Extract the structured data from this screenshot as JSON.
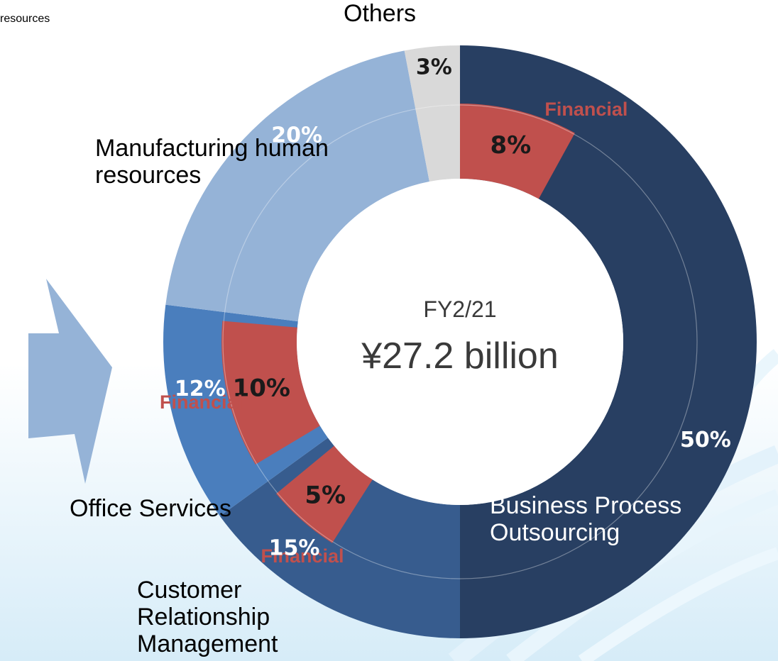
{
  "corner_note": "resources",
  "colors": {
    "bpo": "#283f62",
    "crm": "#375c8e",
    "office": "#4a7ebd",
    "manufacturing": "#95b3d7",
    "others": "#d9d9d9",
    "financial": "#c0504d",
    "arrow": "#95b3d7",
    "financial_text": "#c0504d"
  },
  "center": {
    "period": "FY2/21",
    "total": "¥27.2 billion"
  },
  "chart_data": {
    "type": "pie",
    "subtype": "donut",
    "title": "",
    "center_label": "FY2/21",
    "total": "¥27.2 billion",
    "unit": "%",
    "series": [
      {
        "name": "Business Process Outsourcing",
        "label_lines": [
          "Business Process",
          "Outsourcing"
        ],
        "value": 50,
        "value_label": "50%",
        "financial": 8,
        "financial_label": "8%"
      },
      {
        "name": "Customer Relationship Management",
        "label_lines": [
          "Customer",
          "Relationship",
          "Management"
        ],
        "value": 15,
        "value_label": "15%",
        "financial": 5,
        "financial_label": "5%"
      },
      {
        "name": "Office Services",
        "label_lines": [
          "Office Services"
        ],
        "value": 12,
        "value_label": "12%",
        "financial": 10,
        "financial_label": "10%"
      },
      {
        "name": "Manufacturing human resources",
        "label_lines": [
          "Manufacturing human",
          "resources"
        ],
        "value": 20,
        "value_label": "20%",
        "financial": 0,
        "financial_label": ""
      },
      {
        "name": "Others",
        "label_lines": [
          "Others"
        ],
        "value": 3,
        "value_label": "3%",
        "financial": 0,
        "financial_label": ""
      }
    ],
    "financial_label": "Financial"
  }
}
